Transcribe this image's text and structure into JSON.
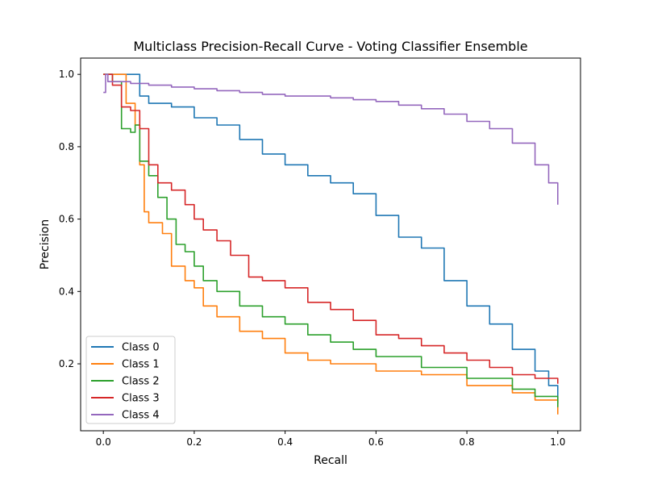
{
  "chart_data": {
    "type": "line",
    "title": "Multiclass Precision-Recall Curve - Voting Classifier Ensemble",
    "xlabel": "Recall",
    "ylabel": "Precision",
    "xlim": [
      -0.05,
      1.05
    ],
    "ylim": [
      0.015,
      1.045
    ],
    "xticks": [
      0.0,
      0.2,
      0.4,
      0.6,
      0.8,
      1.0
    ],
    "xtick_labels": [
      "0.0",
      "0.2",
      "0.4",
      "0.6",
      "0.8",
      "1.0"
    ],
    "yticks": [
      0.2,
      0.4,
      0.6,
      0.8,
      1.0
    ],
    "ytick_labels": [
      "0.2",
      "0.4",
      "0.6",
      "0.8",
      "1.0"
    ],
    "grid": false,
    "legend_position": "lower-left",
    "series": [
      {
        "name": "Class 0",
        "color": "#1f77b4",
        "points": [
          [
            0.0,
            1.0
          ],
          [
            0.05,
            1.0
          ],
          [
            0.075,
            1.0
          ],
          [
            0.08,
            0.94
          ],
          [
            0.1,
            0.92
          ],
          [
            0.15,
            0.91
          ],
          [
            0.2,
            0.88
          ],
          [
            0.25,
            0.86
          ],
          [
            0.3,
            0.82
          ],
          [
            0.35,
            0.78
          ],
          [
            0.4,
            0.75
          ],
          [
            0.45,
            0.72
          ],
          [
            0.5,
            0.7
          ],
          [
            0.55,
            0.67
          ],
          [
            0.6,
            0.61
          ],
          [
            0.65,
            0.55
          ],
          [
            0.7,
            0.52
          ],
          [
            0.75,
            0.43
          ],
          [
            0.8,
            0.36
          ],
          [
            0.85,
            0.31
          ],
          [
            0.9,
            0.24
          ],
          [
            0.95,
            0.18
          ],
          [
            0.98,
            0.14
          ],
          [
            1.0,
            0.09
          ]
        ]
      },
      {
        "name": "Class 1",
        "color": "#ff7f0e",
        "points": [
          [
            0.0,
            1.0
          ],
          [
            0.02,
            1.0
          ],
          [
            0.04,
            1.0
          ],
          [
            0.05,
            0.92
          ],
          [
            0.07,
            0.86
          ],
          [
            0.08,
            0.75
          ],
          [
            0.09,
            0.62
          ],
          [
            0.1,
            0.59
          ],
          [
            0.13,
            0.56
          ],
          [
            0.15,
            0.47
          ],
          [
            0.18,
            0.43
          ],
          [
            0.2,
            0.41
          ],
          [
            0.22,
            0.36
          ],
          [
            0.25,
            0.33
          ],
          [
            0.3,
            0.29
          ],
          [
            0.35,
            0.27
          ],
          [
            0.4,
            0.23
          ],
          [
            0.45,
            0.21
          ],
          [
            0.5,
            0.2
          ],
          [
            0.55,
            0.2
          ],
          [
            0.6,
            0.18
          ],
          [
            0.7,
            0.17
          ],
          [
            0.8,
            0.14
          ],
          [
            0.9,
            0.12
          ],
          [
            0.95,
            0.1
          ],
          [
            1.0,
            0.06
          ]
        ]
      },
      {
        "name": "Class 2",
        "color": "#2ca02c",
        "points": [
          [
            0.0,
            1.0
          ],
          [
            0.02,
            0.98
          ],
          [
            0.04,
            0.85
          ],
          [
            0.06,
            0.84
          ],
          [
            0.07,
            0.86
          ],
          [
            0.08,
            0.76
          ],
          [
            0.1,
            0.72
          ],
          [
            0.12,
            0.66
          ],
          [
            0.14,
            0.6
          ],
          [
            0.16,
            0.53
          ],
          [
            0.18,
            0.51
          ],
          [
            0.2,
            0.47
          ],
          [
            0.22,
            0.43
          ],
          [
            0.25,
            0.4
          ],
          [
            0.3,
            0.36
          ],
          [
            0.35,
            0.33
          ],
          [
            0.4,
            0.31
          ],
          [
            0.45,
            0.28
          ],
          [
            0.5,
            0.26
          ],
          [
            0.55,
            0.24
          ],
          [
            0.6,
            0.22
          ],
          [
            0.7,
            0.19
          ],
          [
            0.8,
            0.16
          ],
          [
            0.9,
            0.13
          ],
          [
            0.95,
            0.11
          ],
          [
            1.0,
            0.08
          ]
        ]
      },
      {
        "name": "Class 3",
        "color": "#d62728",
        "points": [
          [
            0.0,
            1.0
          ],
          [
            0.02,
            0.97
          ],
          [
            0.04,
            0.91
          ],
          [
            0.06,
            0.9
          ],
          [
            0.08,
            0.85
          ],
          [
            0.1,
            0.75
          ],
          [
            0.12,
            0.7
          ],
          [
            0.15,
            0.68
          ],
          [
            0.18,
            0.64
          ],
          [
            0.2,
            0.6
          ],
          [
            0.22,
            0.57
          ],
          [
            0.25,
            0.54
          ],
          [
            0.28,
            0.5
          ],
          [
            0.32,
            0.44
          ],
          [
            0.35,
            0.43
          ],
          [
            0.4,
            0.41
          ],
          [
            0.45,
            0.37
          ],
          [
            0.5,
            0.35
          ],
          [
            0.55,
            0.32
          ],
          [
            0.6,
            0.28
          ],
          [
            0.65,
            0.27
          ],
          [
            0.7,
            0.25
          ],
          [
            0.75,
            0.23
          ],
          [
            0.8,
            0.21
          ],
          [
            0.85,
            0.19
          ],
          [
            0.9,
            0.17
          ],
          [
            0.95,
            0.16
          ],
          [
            1.0,
            0.145
          ]
        ]
      },
      {
        "name": "Class 4",
        "color": "#9467bd",
        "points": [
          [
            0.0,
            0.95
          ],
          [
            0.005,
            1.0
          ],
          [
            0.01,
            0.98
          ],
          [
            0.03,
            0.98
          ],
          [
            0.06,
            0.975
          ],
          [
            0.1,
            0.97
          ],
          [
            0.15,
            0.965
          ],
          [
            0.2,
            0.96
          ],
          [
            0.25,
            0.955
          ],
          [
            0.3,
            0.95
          ],
          [
            0.35,
            0.945
          ],
          [
            0.4,
            0.94
          ],
          [
            0.45,
            0.94
          ],
          [
            0.5,
            0.935
          ],
          [
            0.55,
            0.93
          ],
          [
            0.6,
            0.925
          ],
          [
            0.65,
            0.915
          ],
          [
            0.7,
            0.905
          ],
          [
            0.75,
            0.89
          ],
          [
            0.8,
            0.87
          ],
          [
            0.85,
            0.85
          ],
          [
            0.9,
            0.81
          ],
          [
            0.95,
            0.75
          ],
          [
            0.98,
            0.7
          ],
          [
            1.0,
            0.64
          ]
        ]
      }
    ]
  }
}
